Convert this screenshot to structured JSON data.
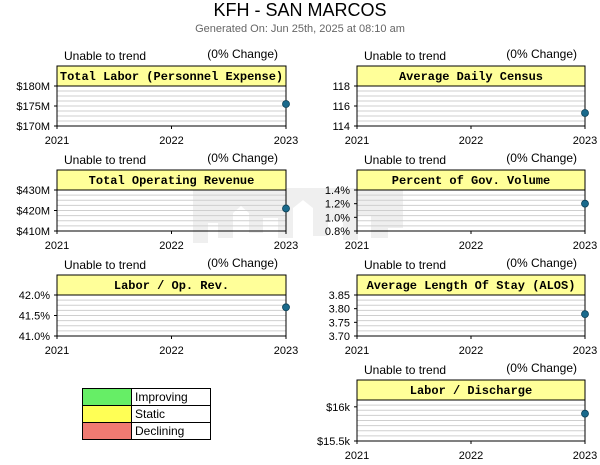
{
  "header": {
    "title": "KFH - SAN MARCOS",
    "subtitle": "Generated On: Jun 25th, 2025 at 08:10 am"
  },
  "legend": [
    {
      "label": "Improving",
      "color": "#66ee66"
    },
    {
      "label": "Static",
      "color": "#ffff55"
    },
    {
      "label": "Declining",
      "color": "#f07a72"
    }
  ],
  "colors": {
    "header_fill": "#ffff99",
    "point": "#1a6a8c",
    "grid": "#cfcfcf"
  },
  "chart_data": [
    {
      "type": "line",
      "title": "Total Labor (Personnel Expense)",
      "trend": "Unable to trend",
      "change": "(0% Change)",
      "x": [
        "2021",
        "2022",
        "2023"
      ],
      "y": [
        null,
        null,
        175.5
      ],
      "ylim": [
        170,
        180
      ],
      "yticks": [
        170,
        175,
        180
      ],
      "ytick_labels": [
        "$170M",
        "$175M",
        "$180M"
      ]
    },
    {
      "type": "line",
      "title": "Average Daily Census",
      "trend": "Unable to trend",
      "change": "(0% Change)",
      "x": [
        "2021",
        "2022",
        "2023"
      ],
      "y": [
        null,
        null,
        115.3
      ],
      "ylim": [
        114,
        118
      ],
      "yticks": [
        114,
        116,
        118
      ],
      "ytick_labels": [
        "114",
        "116",
        "118"
      ]
    },
    {
      "type": "line",
      "title": "Total Operating Revenue",
      "trend": "Unable to trend",
      "change": "(0% Change)",
      "x": [
        "2021",
        "2022",
        "2023"
      ],
      "y": [
        null,
        null,
        421
      ],
      "ylim": [
        410,
        430
      ],
      "yticks": [
        410,
        420,
        430
      ],
      "ytick_labels": [
        "$410M",
        "$420M",
        "$430M"
      ]
    },
    {
      "type": "line",
      "title": "Percent of Gov. Volume",
      "trend": "Unable to trend",
      "change": "(0% Change)",
      "x": [
        "2021",
        "2022",
        "2023"
      ],
      "y": [
        null,
        null,
        1.2
      ],
      "ylim": [
        0.8,
        1.4
      ],
      "yticks": [
        0.8,
        1.0,
        1.2,
        1.4
      ],
      "ytick_labels": [
        "0.8%",
        "1.0%",
        "1.2%",
        "1.4%"
      ]
    },
    {
      "type": "line",
      "title": "Labor / Op. Rev.",
      "trend": "Unable to trend",
      "change": "(0% Change)",
      "x": [
        "2021",
        "2022",
        "2023"
      ],
      "y": [
        null,
        null,
        41.7
      ],
      "ylim": [
        41.0,
        42.0
      ],
      "yticks": [
        41.0,
        41.5,
        42.0
      ],
      "ytick_labels": [
        "41.0%",
        "41.5%",
        "42.0%"
      ]
    },
    {
      "type": "line",
      "title": "Average Length Of Stay (ALOS)",
      "trend": "Unable to trend",
      "change": "(0% Change)",
      "x": [
        "2021",
        "2022",
        "2023"
      ],
      "y": [
        null,
        null,
        3.78
      ],
      "ylim": [
        3.7,
        3.85
      ],
      "yticks": [
        3.7,
        3.75,
        3.8,
        3.85
      ],
      "ytick_labels": [
        "3.70",
        "3.75",
        "3.80",
        "3.85"
      ]
    },
    {
      "type": "line",
      "title": "Labor / Discharge",
      "trend": "Unable to trend",
      "change": "(0% Change)",
      "x": [
        "2021",
        "2022",
        "2023"
      ],
      "y": [
        null,
        null,
        15.9
      ],
      "ylim": [
        15.5,
        16.1
      ],
      "yticks": [
        15.5,
        16.0
      ],
      "ytick_labels": [
        "$15.5k",
        "$16k"
      ]
    }
  ]
}
